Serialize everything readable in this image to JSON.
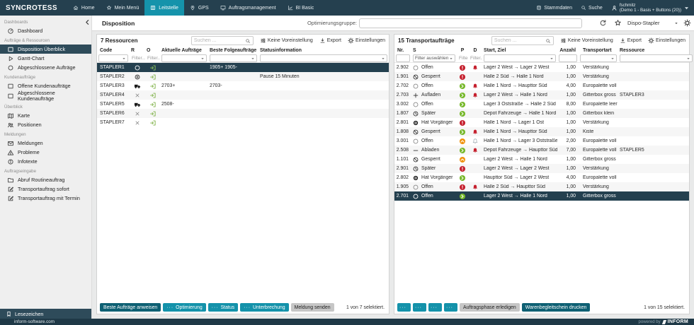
{
  "topbar": {
    "brand": "SYNCROTESS",
    "nav": [
      {
        "label": "Home",
        "icon": "home",
        "active": false
      },
      {
        "label": "Mein Menü",
        "icon": "star",
        "active": false
      },
      {
        "label": "Leitstelle",
        "icon": "kanban",
        "active": true
      },
      {
        "label": "GPS",
        "icon": "pin",
        "active": false
      },
      {
        "label": "Auftragsmanagement",
        "icon": "monitor",
        "active": false
      },
      {
        "label": "BI Basic",
        "icon": "chart",
        "active": false
      }
    ],
    "right": [
      {
        "label": "Stammdaten",
        "icon": "db"
      },
      {
        "label": "Suche",
        "icon": "search"
      }
    ],
    "user": {
      "name": "fschmitz",
      "role": "(Demo 1 - Basis + Buttons (20))"
    }
  },
  "subbar": {
    "title": "Disposition",
    "opt_label": "Optimierungsgruppe:",
    "profile": "Dispo-Stapler"
  },
  "sidebar": {
    "sections": [
      {
        "title": "Dashboards",
        "items": [
          {
            "label": "Dashboard",
            "icon": "gauge",
            "active": false
          }
        ]
      },
      {
        "title": "Aufträge & Ressourcen",
        "items": [
          {
            "label": "Disposition Überblick",
            "icon": "square",
            "active": true
          },
          {
            "label": "Gantt-Chart",
            "icon": "play",
            "active": false
          },
          {
            "label": "Abgeschlossene Aufträge",
            "icon": "circle",
            "active": false
          }
        ]
      },
      {
        "title": "Kundenaufträge",
        "items": [
          {
            "label": "Offene Kundenaufträge",
            "icon": "square",
            "active": false
          },
          {
            "label": "Abgeschlossene Kundenaufträge",
            "icon": "square",
            "active": false
          }
        ]
      },
      {
        "title": "Überblick",
        "items": [
          {
            "label": "Karte",
            "icon": "map",
            "active": false
          },
          {
            "label": "Positionen",
            "icon": "people",
            "active": false
          }
        ]
      },
      {
        "title": "Meldungen",
        "items": [
          {
            "label": "Meldungen",
            "icon": "mail",
            "active": false
          },
          {
            "label": "Probleme",
            "icon": "warn",
            "active": false
          },
          {
            "label": "Infotexte",
            "icon": "info",
            "active": false
          }
        ]
      },
      {
        "title": "Auftragseingabe",
        "items": [
          {
            "label": "Abruf Routineauftrag",
            "icon": "folder",
            "active": false
          },
          {
            "label": "Transportauftrag sofort",
            "icon": "edit",
            "active": false
          },
          {
            "label": "Transportauftrag mit Termin",
            "icon": "edit",
            "active": false
          }
        ]
      }
    ],
    "bookmark": "Lesezeichen",
    "site": "inform-software.com"
  },
  "resources": {
    "title": "7 Ressourcen",
    "search_placeholder": "Suchen ...",
    "tools": {
      "preset": "Keine Voreinstellung",
      "export": "Export",
      "settings": "Einstellungen"
    },
    "columns": [
      "Code",
      "R",
      "O",
      "Aktuelle Aufträge",
      "Beste Folgeaufträge",
      "Statusinformation"
    ],
    "filter_text": "Filter...",
    "rows": [
      {
        "code": "STAPLER1",
        "r": "circle",
        "o": "login",
        "current": "",
        "next": "1905+ 1905-",
        "status": "",
        "selected": true
      },
      {
        "code": "STAPLER2",
        "r": "pause",
        "o": "login",
        "current": "",
        "next": "",
        "status": "Pause 15 Minuten",
        "selected": false
      },
      {
        "code": "STAPLER3",
        "r": "truck",
        "o": "login",
        "current": "2703+",
        "next": "2703-",
        "status": "",
        "selected": false
      },
      {
        "code": "STAPLER4",
        "r": "xmark",
        "o": "login",
        "current": "",
        "next": "",
        "status": "",
        "selected": false
      },
      {
        "code": "STAPLER5",
        "r": "truck",
        "o": "login",
        "current": "2508-",
        "next": "",
        "status": "",
        "selected": false
      },
      {
        "code": "STAPLER6",
        "r": "xmark",
        "o": "login",
        "current": "",
        "next": "",
        "status": "",
        "selected": false
      },
      {
        "code": "STAPLER7",
        "r": "xmark",
        "o": "login",
        "current": "",
        "next": "",
        "status": "",
        "selected": false
      }
    ],
    "footer": {
      "buttons": [
        {
          "label": "Beste Aufträge anweisen",
          "style": "dark",
          "more": false
        },
        {
          "label": "Optimierung",
          "style": "teal",
          "more": true
        },
        {
          "label": "Status",
          "style": "teal",
          "more": true
        },
        {
          "label": "Unterbrechung",
          "style": "teal",
          "more": true
        },
        {
          "label": "Meldung senden",
          "style": "gray",
          "more": false
        }
      ],
      "selection": "1 von 7 selektiert."
    }
  },
  "orders": {
    "title": "15 Transportaufträge",
    "search_placeholder": "Suchen ...",
    "tools": {
      "preset": "Keine Voreinstellung",
      "export": "Export",
      "settings": "Einstellungen"
    },
    "columns": [
      "Nr.",
      "S",
      "P",
      "D",
      "Start, Ziel",
      "Anzahl",
      "Transportart",
      "Ressource"
    ],
    "filter_text": "Filter...",
    "filter_select": "Filter auswählen",
    "rows": [
      {
        "nr": "2.902",
        "s_icon": "circle",
        "s": "Offen",
        "p": "red",
        "d": "bell",
        "route": "Lager 2 West → Lager 2 West",
        "qty": "1,00",
        "type": "Verstärkung",
        "res": "",
        "selected": false
      },
      {
        "nr": "1.901",
        "s_icon": "slashcircle",
        "s": "Gesperrt",
        "p": "red",
        "d": "",
        "route": "Halle 2 Süd → Halle 1 Nord",
        "qty": "1,00",
        "type": "Verstärkung",
        "res": "",
        "selected": false
      },
      {
        "nr": "2.702",
        "s_icon": "circle",
        "s": "Offen",
        "p": "green",
        "d": "bell",
        "route": "Halle 1 Nord → Haupttor Süd",
        "qty": "4,00",
        "type": "Europalette voll",
        "res": "",
        "selected": false
      },
      {
        "nr": "2.703",
        "s_icon": "plus",
        "s": "Aufladen",
        "p": "green",
        "d": "bell",
        "route": "Lager 2 West → Halle 1 Nord",
        "qty": "1,00",
        "type": "Gitterbox gross",
        "res": "STAPLER3",
        "selected": false
      },
      {
        "nr": "3.002",
        "s_icon": "circle",
        "s": "Offen",
        "p": "green",
        "d": "",
        "route": "Lager 3 Oststraße → Halle 2 Süd",
        "qty": "8,00",
        "type": "Europalette leer",
        "res": "",
        "selected": false
      },
      {
        "nr": "1.807",
        "s_icon": "clock",
        "s": "Später",
        "p": "green",
        "d": "",
        "route": "Depot Fahrzeuge → Halle 1 Nord",
        "qty": "1,00",
        "type": "Gitterbox klein",
        "res": "",
        "selected": false
      },
      {
        "nr": "2.801",
        "s_icon": "target",
        "s": "Hat Vorgänger",
        "p": "red",
        "d": "",
        "route": "Halle 1 Nord → Lager 1 Ost",
        "qty": "1,00",
        "type": "Verstärkung",
        "res": "",
        "selected": false
      },
      {
        "nr": "1.808",
        "s_icon": "slashcircle",
        "s": "Gesperrt",
        "p": "green",
        "d": "bell",
        "route": "Halle 1 Nord → Haupttor Süd",
        "qty": "1,00",
        "type": "Kiste",
        "res": "",
        "selected": false
      },
      {
        "nr": "3.001",
        "s_icon": "circle",
        "s": "Offen",
        "p": "orange",
        "d": "belloutline",
        "route": "Halle 1 Nord → Lager 3 Oststraße",
        "qty": "2,00",
        "type": "Europalette voll",
        "res": "",
        "selected": false
      },
      {
        "nr": "2.508",
        "s_icon": "minus",
        "s": "Abladen",
        "p": "green",
        "d": "bell",
        "route": "Depot Fahrzeuge → Haupttor Süd",
        "qty": "7,00",
        "type": "Europalette voll",
        "res": "STAPLER5",
        "selected": false
      },
      {
        "nr": "1.101",
        "s_icon": "slashcircle",
        "s": "Gesperrt",
        "p": "orange",
        "d": "",
        "route": "Lager 2 West → Halle 1 Nord",
        "qty": "1,00",
        "type": "Gitterbox gross",
        "res": "",
        "selected": false
      },
      {
        "nr": "2.901",
        "s_icon": "clock",
        "s": "Später",
        "p": "red",
        "d": "",
        "route": "Lager 2 West → Lager 2 West",
        "qty": "1,00",
        "type": "Verstärkung",
        "res": "",
        "selected": false
      },
      {
        "nr": "2.802",
        "s_icon": "target",
        "s": "Hat Vorgänger",
        "p": "green",
        "d": "",
        "route": "Haupttor Süd → Lager 2 West",
        "qty": "4,00",
        "type": "Europalette voll",
        "res": "",
        "selected": false
      },
      {
        "nr": "1.905",
        "s_icon": "circle",
        "s": "Offen",
        "p": "red",
        "d": "bell",
        "route": "Halle 2 Süd → Haupttor Süd",
        "qty": "1,00",
        "type": "Verstärkung",
        "res": "",
        "selected": false
      },
      {
        "nr": "2.701",
        "s_icon": "circle",
        "s": "Offen",
        "p": "green",
        "d": "",
        "route": "Lager 2 West → Halle 1 Nord",
        "qty": "1,00",
        "type": "Gitterbox gross",
        "res": "",
        "selected": true
      }
    ],
    "footer": {
      "more_buttons": [
        "···",
        "···",
        "···",
        "···"
      ],
      "buttons": [
        {
          "label": "Auftragsphase erledigen",
          "style": "gray",
          "more": false
        },
        {
          "label": "Warenbegleitschein drucken",
          "style": "dark",
          "more": false
        }
      ],
      "selection": "1 von 15 selektiert."
    }
  },
  "footer": {
    "powered": "powered by",
    "brand": "INFORM"
  },
  "colors": {
    "topbar": "#25404f",
    "accent_teal": "#1593ab",
    "selected_row": "#24404f",
    "green": "#7cb043",
    "red": "#c5202e",
    "orange": "#f0930f",
    "button_dark": "#0e6073",
    "button_teal": "#1492aa",
    "button_gray": "#c6c6c6"
  }
}
